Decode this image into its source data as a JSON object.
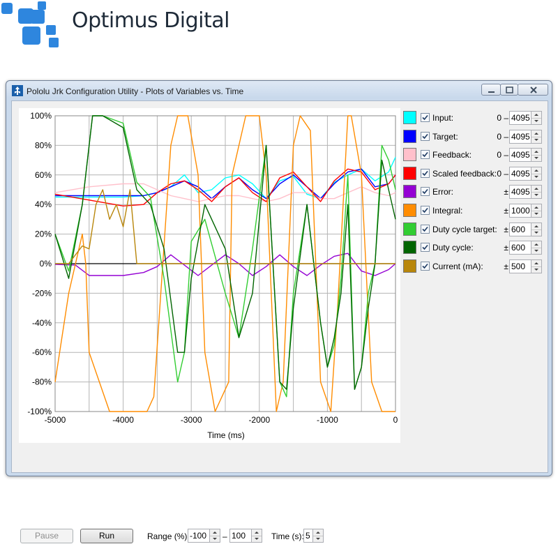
{
  "brand": {
    "name": "Optimus Digital",
    "logo_color": "#2e86de"
  },
  "window": {
    "title": "Pololu Jrk Configuration Utility - Plots of Variables vs. Time"
  },
  "plot": {
    "x_axis_label": "Time (ms)",
    "x_ticks": [
      "-5000",
      "-4000",
      "-3000",
      "-2000",
      "-1000",
      "0"
    ],
    "y_ticks": [
      "100%",
      "80%",
      "60%",
      "40%",
      "20%",
      "0%",
      "-20%",
      "-40%",
      "-60%",
      "-80%",
      "-100%"
    ]
  },
  "legend": [
    {
      "label": "Input:",
      "prefix": "0 –",
      "value": "4095",
      "color": "#00ffff",
      "checked": true
    },
    {
      "label": "Target:",
      "prefix": "0 –",
      "value": "4095",
      "color": "#0000ff",
      "checked": true
    },
    {
      "label": "Feedback:",
      "prefix": "0 –",
      "value": "4095",
      "color": "#ffc0cb",
      "checked": true
    },
    {
      "label": "Scaled feedback:",
      "prefix": "0 –",
      "value": "4095",
      "color": "#ff0000",
      "checked": true
    },
    {
      "label": "Error:",
      "prefix": "±",
      "value": "4095",
      "color": "#9400d3",
      "checked": true
    },
    {
      "label": "Integral:",
      "prefix": "±",
      "value": "1000",
      "color": "#ff8c00",
      "checked": true
    },
    {
      "label": "Duty cycle target:",
      "prefix": "±",
      "value": "600",
      "color": "#32cd32",
      "checked": true
    },
    {
      "label": "Duty cycle:",
      "prefix": "±",
      "value": "600",
      "color": "#006400",
      "checked": true
    },
    {
      "label": "Current (mA):",
      "prefix": "±",
      "value": "500",
      "color": "#b8860b",
      "checked": true
    }
  ],
  "controls": {
    "pause_label": "Pause",
    "run_label": "Run",
    "range_label": "Range (%):",
    "range_min": "-100",
    "range_separator": "–",
    "range_max": "100",
    "time_label": "Time (s):",
    "time_value": "5"
  },
  "chart_data": {
    "type": "line",
    "xlabel": "Time (ms)",
    "ylabel": "",
    "xlim": [
      -5000,
      0
    ],
    "ylim": [
      -100,
      100
    ],
    "grid": true,
    "series": [
      {
        "name": "Input",
        "color": "#00ffff",
        "x": [
          -5000,
          -4500,
          -4000,
          -3700,
          -3500,
          -3300,
          -3100,
          -2900,
          -2700,
          -2500,
          -2300,
          -2100,
          -1900,
          -1700,
          -1500,
          -1300,
          -1100,
          -900,
          -700,
          -500,
          -300,
          -100,
          0
        ],
        "y": [
          45,
          45,
          45,
          46,
          48,
          52,
          60,
          48,
          50,
          58,
          60,
          54,
          44,
          56,
          59,
          47,
          44,
          55,
          60,
          64,
          56,
          62,
          72
        ]
      },
      {
        "name": "Target",
        "color": "#0000ff",
        "x": [
          -5000,
          -4500,
          -4000,
          -3700,
          -3500,
          -3300,
          -3100,
          -2900,
          -2700,
          -2500,
          -2300,
          -2100,
          -1900,
          -1700,
          -1500,
          -1300,
          -1100,
          -900,
          -700,
          -500,
          -300,
          -100,
          0
        ],
        "y": [
          46,
          46,
          46,
          46,
          48,
          52,
          56,
          52,
          44,
          52,
          58,
          50,
          44,
          54,
          60,
          52,
          44,
          54,
          62,
          64,
          52,
          54,
          60
        ]
      },
      {
        "name": "Feedback",
        "color": "#ffc0cb",
        "x": [
          -5000,
          -4500,
          -4000,
          -3700,
          -3500,
          -3300,
          -3100,
          -2900,
          -2700,
          -2500,
          -2300,
          -2100,
          -1900,
          -1700,
          -1500,
          -1300,
          -1100,
          -900,
          -700,
          -500,
          -300,
          -100,
          0
        ],
        "y": [
          48,
          52,
          54,
          54,
          50,
          46,
          44,
          42,
          44,
          46,
          46,
          44,
          42,
          44,
          48,
          48,
          44,
          44,
          48,
          52,
          48,
          46,
          48
        ]
      },
      {
        "name": "Scaled feedback",
        "color": "#ff0000",
        "x": [
          -5000,
          -4500,
          -4000,
          -3700,
          -3500,
          -3300,
          -3100,
          -2900,
          -2700,
          -2500,
          -2300,
          -2100,
          -1900,
          -1700,
          -1500,
          -1300,
          -1100,
          -900,
          -700,
          -500,
          -300,
          -100,
          0
        ],
        "y": [
          47,
          43,
          39,
          40,
          48,
          54,
          56,
          50,
          42,
          52,
          58,
          48,
          42,
          58,
          62,
          52,
          42,
          56,
          64,
          62,
          50,
          54,
          60
        ]
      },
      {
        "name": "Error",
        "color": "#9400d3",
        "x": [
          -5000,
          -4700,
          -4500,
          -4000,
          -3700,
          -3500,
          -3300,
          -3100,
          -2900,
          -2700,
          -2500,
          -2300,
          -2100,
          -1900,
          -1700,
          -1500,
          -1300,
          -1100,
          -900,
          -700,
          -500,
          -300,
          -100,
          0
        ],
        "y": [
          -0.5,
          -1,
          -8,
          -8,
          -6,
          -2,
          6,
          -1,
          -8,
          -1,
          6,
          0,
          -8,
          -2,
          6,
          -2,
          -8,
          -1,
          5,
          7,
          -5,
          -8,
          -4,
          0
        ]
      },
      {
        "name": "Integral",
        "color": "#ff8c00",
        "x": [
          -5000,
          -4800,
          -4600,
          -4550,
          -4500,
          -4200,
          -3900,
          -3650,
          -3550,
          -3300,
          -3200,
          -3050,
          -2900,
          -2800,
          -2650,
          -2450,
          -2400,
          -2200,
          -2000,
          -1900,
          -1750,
          -1650,
          -1500,
          -1400,
          -1250,
          -1100,
          -950,
          -850,
          -700,
          -650,
          -500,
          -350,
          -200,
          0
        ],
        "y": [
          -80,
          -20,
          20,
          0,
          -60,
          -100,
          -100,
          -100,
          -90,
          80,
          100,
          100,
          60,
          -60,
          -100,
          -80,
          60,
          100,
          100,
          60,
          -100,
          -80,
          80,
          100,
          90,
          -80,
          -100,
          -30,
          100,
          100,
          60,
          -80,
          -100,
          -100
        ]
      },
      {
        "name": "Duty cycle target",
        "color": "#32cd32",
        "x": [
          -5000,
          -4800,
          -4600,
          -4450,
          -4300,
          -4000,
          -3800,
          -3600,
          -3400,
          -3200,
          -3100,
          -3000,
          -2800,
          -2500,
          -2300,
          -2100,
          -1900,
          -1700,
          -1600,
          -1500,
          -1300,
          -1100,
          -1000,
          -900,
          -800,
          -700,
          -600,
          -500,
          -400,
          -300,
          -200,
          -100,
          0
        ],
        "y": [
          20,
          -5,
          40,
          100,
          100,
          95,
          55,
          45,
          -10,
          -80,
          -60,
          15,
          30,
          -20,
          -50,
          10,
          80,
          -80,
          -90,
          -20,
          40,
          -40,
          -70,
          -55,
          -10,
          60,
          -85,
          -70,
          -20,
          0,
          80,
          70,
          50
        ]
      },
      {
        "name": "Duty cycle",
        "color": "#006400",
        "x": [
          -5000,
          -4800,
          -4600,
          -4450,
          -4300,
          -4000,
          -3800,
          -3600,
          -3400,
          -3200,
          -3100,
          -3000,
          -2800,
          -2500,
          -2300,
          -2100,
          -1900,
          -1700,
          -1600,
          -1500,
          -1300,
          -1100,
          -1000,
          -900,
          -800,
          -700,
          -600,
          -500,
          -400,
          -300,
          -200,
          -100,
          0
        ],
        "y": [
          20,
          -10,
          40,
          100,
          100,
          92,
          50,
          40,
          10,
          -60,
          -60,
          -10,
          40,
          10,
          -50,
          -20,
          80,
          -80,
          -85,
          -30,
          40,
          -40,
          -70,
          -50,
          -20,
          40,
          -85,
          -70,
          -30,
          0,
          70,
          50,
          30
        ]
      },
      {
        "name": "Current (mA)",
        "color": "#b8860b",
        "x": [
          -5000,
          -4800,
          -4600,
          -4500,
          -4400,
          -4300,
          -4200,
          -4100,
          -4000,
          -3900,
          -3800,
          -3750,
          -3700,
          -3500,
          -3000,
          -2000,
          -1000,
          0
        ],
        "y": [
          0,
          0,
          12,
          10,
          40,
          50,
          30,
          40,
          25,
          50,
          0,
          0,
          0,
          0,
          0,
          0,
          0,
          0
        ]
      }
    ]
  }
}
